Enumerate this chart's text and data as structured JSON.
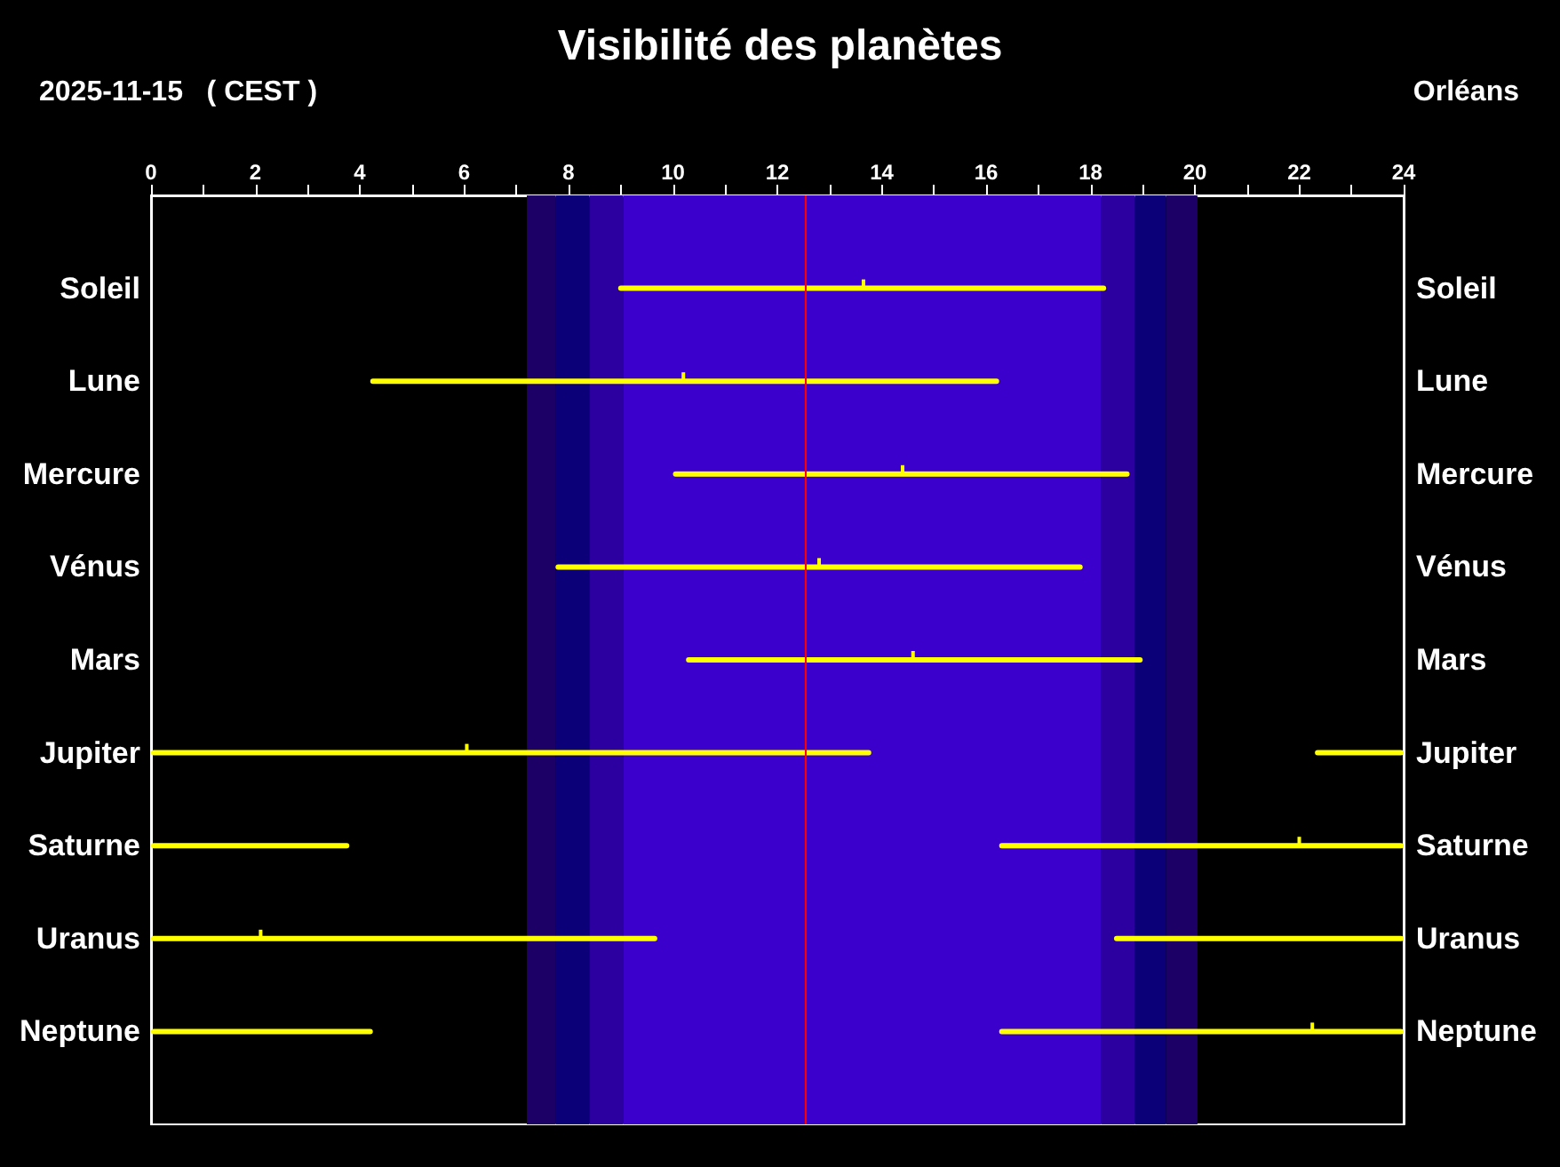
{
  "chart_data": {
    "type": "bar",
    "orientation": "horizontal",
    "title": "Visibilité des planètes",
    "subtitle": "2025-11-15   ( CEST )",
    "annotations": [
      "Orléans"
    ],
    "categories": [
      "Soleil",
      "Lune",
      "Mercure",
      "Vénus",
      "Mars",
      "Jupiter",
      "Saturne",
      "Uranus",
      "Neptune"
    ],
    "y2_categories": [
      "Soleil",
      "Lune",
      "Mercure",
      "Vénus",
      "Mars",
      "Jupiter",
      "Saturne",
      "Uranus",
      "Neptune"
    ],
    "xlim": [
      0,
      24
    ],
    "xticks": [
      0,
      {
        "value": 1,
        "label": null
      },
      2,
      {
        "value": 3,
        "label": null
      },
      4,
      {
        "value": 5,
        "label": null
      },
      6,
      {
        "value": 7,
        "label": null
      },
      8,
      {
        "value": 9,
        "label": null
      },
      10,
      {
        "value": 11,
        "label": null
      },
      12,
      {
        "value": 13,
        "label": null
      },
      14,
      {
        "value": 15,
        "label": null
      },
      16,
      {
        "value": 17,
        "label": null
      },
      18,
      {
        "value": 19,
        "label": null
      },
      20,
      {
        "value": 21,
        "label": null
      },
      22,
      {
        "value": 23,
        "label": null
      },
      24
    ],
    "series": [
      {
        "color": "#ffff00",
        "base": [
          8.95,
          4.2,
          10.0,
          7.75,
          10.25,
          0,
          0,
          0,
          0
        ],
        "values": [
          9.35,
          12.05,
          8.75,
          10.1,
          8.75,
          13.8,
          3.8,
          9.7,
          4.25
        ]
      },
      {
        "color": "#ffff00",
        "base": [
          null,
          null,
          null,
          null,
          null,
          22.3,
          16.25,
          18.45,
          16.25
        ],
        "values": [
          null,
          null,
          null,
          null,
          null,
          1.7,
          7.75,
          5.55,
          7.75
        ]
      },
      {
        "type": "scatter",
        "color": "#ffff00",
        "values": [
          13.65,
          10.2,
          14.4,
          12.8,
          14.6,
          6.05,
          22.0,
          2.1,
          22.25
        ]
      }
    ],
    "bands": [
      {
        "axis": "x",
        "from": 7.2,
        "to": 7.75,
        "color": "#1c0066"
      },
      {
        "axis": "x",
        "from": 7.75,
        "to": 8.4,
        "color": "#0c0078"
      },
      {
        "axis": "x",
        "from": 8.4,
        "to": 9.05,
        "color": "#2c00a0"
      },
      {
        "axis": "x",
        "from": 9.05,
        "to": 18.2,
        "color": "#3c00cc"
      },
      {
        "axis": "x",
        "from": 18.2,
        "to": 18.85,
        "color": "#2c00a0"
      },
      {
        "axis": "x",
        "from": 18.85,
        "to": 19.45,
        "color": "#0c0078"
      },
      {
        "axis": "x",
        "from": 19.45,
        "to": 20.05,
        "color": "#1c0066"
      }
    ],
    "ref_lines": [
      {
        "axis": "x",
        "value": 12.55,
        "color": "#ff0000"
      }
    ]
  }
}
